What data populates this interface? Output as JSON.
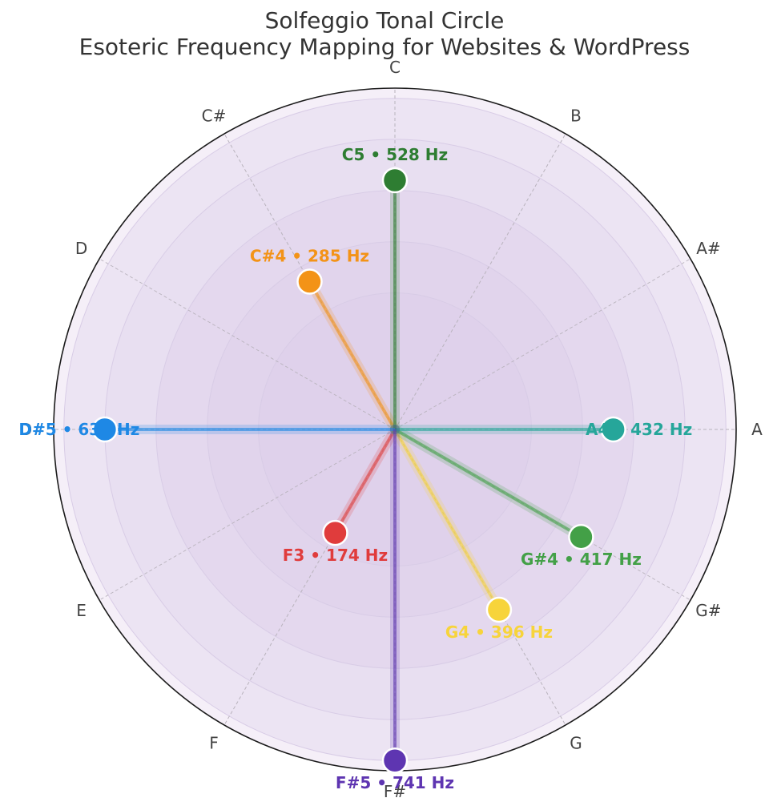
{
  "chart_data": {
    "type": "polar",
    "title": "Solfeggio Tonal Circle",
    "subtitle": "Esoteric Frequency Mapping for Websites & WordPress",
    "angular_ticks": [
      "C",
      "C#",
      "D",
      "D#",
      "E",
      "F",
      "F#",
      "G",
      "G#",
      "A",
      "A#",
      "B"
    ],
    "radial_range": [
      0,
      1
    ],
    "rings": [
      0.4,
      0.55,
      0.7,
      0.85,
      0.97,
      1.0
    ],
    "grid": true,
    "points": [
      {
        "note": "F3",
        "pitch_class": "F",
        "hz": 174,
        "r": 0.35,
        "label": "F3  •  174 Hz",
        "color": "#e03c3c"
      },
      {
        "note": "C#4",
        "pitch_class": "C#",
        "hz": 285,
        "r": 0.5,
        "label": "C#4  •  285 Hz",
        "color": "#f39317"
      },
      {
        "note": "G4",
        "pitch_class": "G",
        "hz": 396,
        "r": 0.61,
        "label": "G4  •  396 Hz",
        "color": "#f7d43b"
      },
      {
        "note": "G#4",
        "pitch_class": "G#",
        "hz": 417,
        "r": 0.63,
        "label": "G#4  •  417 Hz",
        "color": "#43a047"
      },
      {
        "note": "A4",
        "pitch_class": "A",
        "hz": 432,
        "r": 0.64,
        "label": "A4  •  432 Hz",
        "color": "#26a69a"
      },
      {
        "note": "C5",
        "pitch_class": "C",
        "hz": 528,
        "r": 0.73,
        "label": "C5  •  528 Hz",
        "color": "#2e7d32"
      },
      {
        "note": "D#5",
        "pitch_class": "D#",
        "hz": 639,
        "r": 0.85,
        "label": "D#5  •  639 Hz",
        "color": "#1e88e5"
      },
      {
        "note": "F#5",
        "pitch_class": "F#",
        "hz": 741,
        "r": 0.97,
        "label": "F#5  •  741 Hz",
        "color": "#5e35b1"
      }
    ]
  }
}
